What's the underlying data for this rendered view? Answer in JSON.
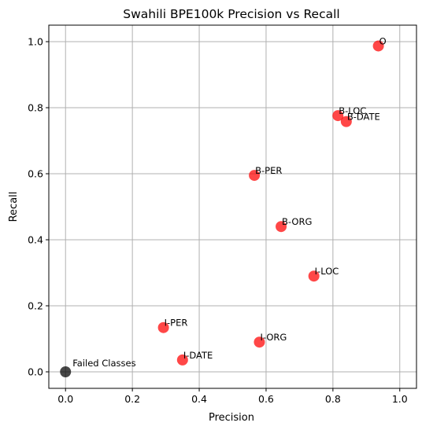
{
  "chart_data": {
    "type": "scatter",
    "title": "Swahili BPE100k Precision vs Recall",
    "xlabel": "Precision",
    "ylabel": "Recall",
    "xlim": [
      -0.05,
      1.05
    ],
    "ylim": [
      -0.05,
      1.05
    ],
    "xticks": [
      "0.0",
      "0.2",
      "0.4",
      "0.6",
      "0.8",
      "1.0"
    ],
    "yticks": [
      "0.0",
      "0.2",
      "0.4",
      "0.6",
      "0.8",
      "1.0"
    ],
    "grid": true,
    "colors": {
      "classes": "#ff0000",
      "failed": "#000000"
    },
    "points": [
      {
        "label": "O",
        "x": 0.936,
        "y": 0.987,
        "group": "classes"
      },
      {
        "label": "B-LOC",
        "x": 0.815,
        "y": 0.776,
        "group": "classes"
      },
      {
        "label": "B-DATE",
        "x": 0.84,
        "y": 0.758,
        "group": "classes"
      },
      {
        "label": "B-PER",
        "x": 0.565,
        "y": 0.595,
        "group": "classes"
      },
      {
        "label": "B-ORG",
        "x": 0.645,
        "y": 0.44,
        "group": "classes"
      },
      {
        "label": "I-LOC",
        "x": 0.743,
        "y": 0.29,
        "group": "classes"
      },
      {
        "label": "I-PER",
        "x": 0.293,
        "y": 0.134,
        "group": "classes"
      },
      {
        "label": "I-ORG",
        "x": 0.58,
        "y": 0.09,
        "group": "classes"
      },
      {
        "label": "I-DATE",
        "x": 0.35,
        "y": 0.036,
        "group": "classes"
      },
      {
        "label": "Failed Classes",
        "x": 0.0,
        "y": 0.0,
        "group": "failed"
      }
    ]
  }
}
